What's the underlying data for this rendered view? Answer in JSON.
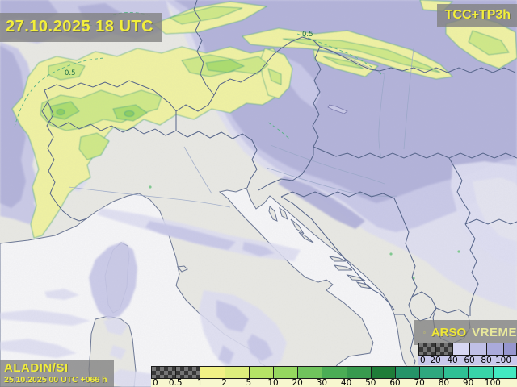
{
  "header": {
    "timestamp": "27.10.2025 18 UTC",
    "product": "TCC+TP3h"
  },
  "footer": {
    "model": "ALADIN/SI",
    "run": "25.10.2025 00 UTC +066 h"
  },
  "logo": {
    "agency": "ARSO",
    "brand": "VREME",
    "icon": "sun-rays-icon"
  },
  "scales": {
    "cloud_cover": {
      "labels": [
        "0",
        "20",
        "40",
        "60",
        "80",
        "100"
      ],
      "cells": [
        "checker",
        "checker",
        "#d7d7f3",
        "#c0c0e7",
        "#aaaadb",
        "#9696ce"
      ]
    },
    "precipitation": {
      "labels": [
        "0",
        "0.5",
        "1",
        "2",
        "5",
        "10",
        "20",
        "30",
        "40",
        "50",
        "60",
        "70",
        "80",
        "90",
        "100"
      ],
      "cells": [
        "checker",
        "checker",
        "#f1f185",
        "#ddee7c",
        "#b5e366",
        "#95d75f",
        "#70c45c",
        "#4bad55",
        "#389a4e",
        "#1f7d38",
        "#259468",
        "#2fa87e",
        "#2fc094",
        "#38d4a8",
        "#42e9c1"
      ]
    }
  },
  "map": {
    "contour_labels": [
      "0.5",
      "0.5"
    ],
    "palette": {
      "yellow": "#f2ee3c",
      "land": "#e9e9e4",
      "sea": "#f6f6f8",
      "coast": "#6a7694",
      "border": "#56658a",
      "river": "#98a6c6",
      "cloud1": "#dedef2",
      "cloud2": "#c8c8e8",
      "cloud3": "#b2b2da",
      "rainY": "#f0f2a2",
      "rainG1": "#cfe987",
      "rainG2": "#abdd6d",
      "rainG3": "#8ccf5f",
      "contour": "#4fae82",
      "tccstrip": "#c9c9ec",
      "pstrip": "#f7f7cf"
    }
  }
}
